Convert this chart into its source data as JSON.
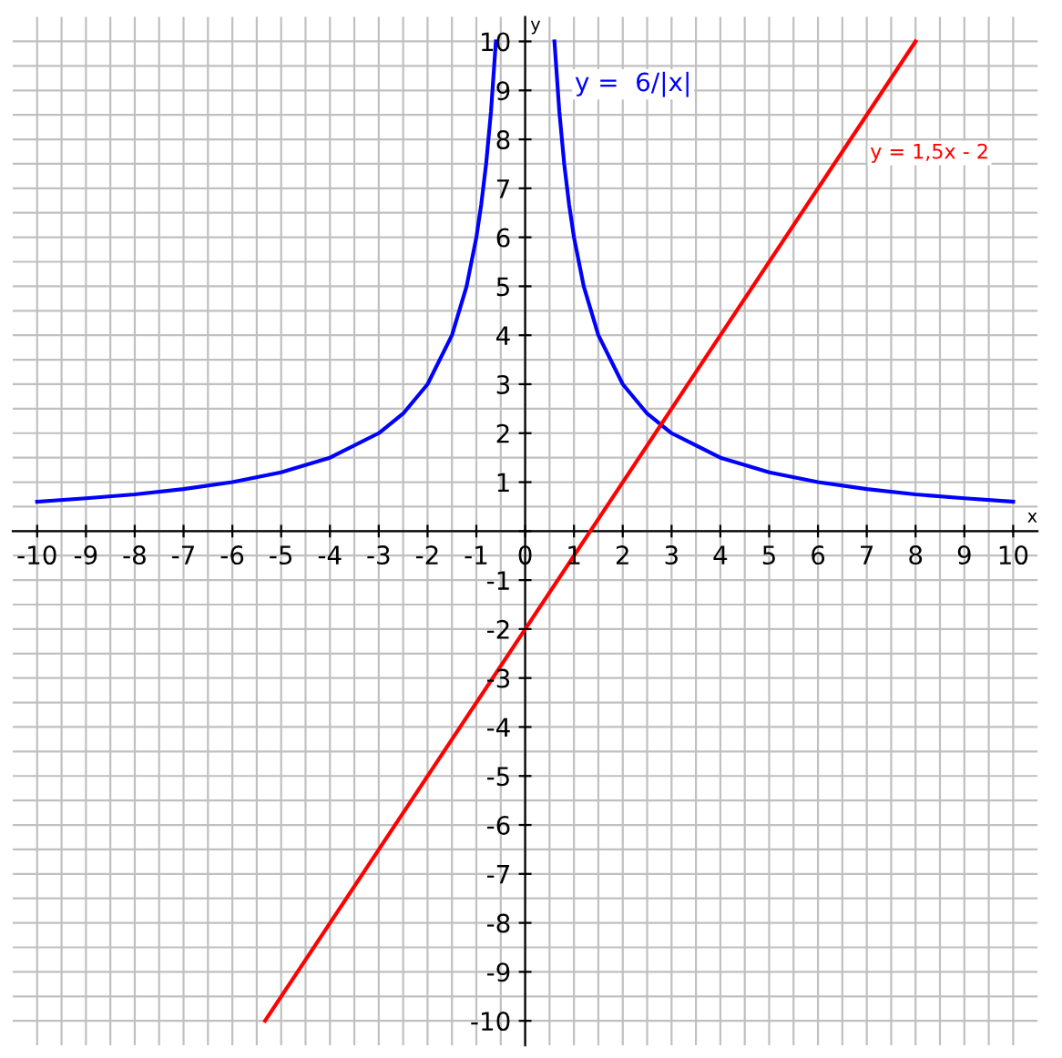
{
  "chart_data": {
    "type": "line",
    "xlabel": "x",
    "ylabel": "y",
    "xlim": [
      -10.5,
      10.5
    ],
    "ylim": [
      -10.5,
      10.5
    ],
    "xticks": [
      {
        "value": -10,
        "label": "-10"
      },
      {
        "value": -9,
        "label": "-9"
      },
      {
        "value": -8,
        "label": "-8"
      },
      {
        "value": -7,
        "label": "-7"
      },
      {
        "value": -6,
        "label": "-6"
      },
      {
        "value": -5,
        "label": "-5"
      },
      {
        "value": -4,
        "label": "-4"
      },
      {
        "value": -3,
        "label": "-3"
      },
      {
        "value": -2,
        "label": "-2"
      },
      {
        "value": -1,
        "label": "-1"
      },
      0,
      1,
      2,
      3,
      4,
      5,
      6,
      7,
      8,
      9,
      10
    ],
    "yticks": [
      {
        "value": -10,
        "label": "-10"
      },
      {
        "value": -9,
        "label": "-9"
      },
      {
        "value": -8,
        "label": "-8"
      },
      {
        "value": -7,
        "label": "-7"
      },
      {
        "value": -6,
        "label": "-6"
      },
      {
        "value": -5,
        "label": "-5"
      },
      {
        "value": -4,
        "label": "-4"
      },
      {
        "value": -3,
        "label": "-3"
      },
      {
        "value": -2,
        "label": "-2"
      },
      {
        "value": -1,
        "label": "-1"
      },
      {
        "value": 0,
        "label": null
      },
      1,
      2,
      3,
      4,
      5,
      6,
      7,
      8,
      9,
      10
    ],
    "grid": true,
    "legend": false,
    "marker": "none",
    "line_style": "solid",
    "series": [
      {
        "name": "y =  6/|x|",
        "color": "#0000ff",
        "x": [
          -10,
          -9,
          -8,
          -7,
          -6,
          -5,
          -4,
          -3,
          -2.5,
          -2,
          -1.5,
          -1.2,
          -1,
          -0.9,
          -0.8,
          -0.7,
          -0.6,
          0,
          0.6,
          0.7,
          0.8,
          0.9,
          1,
          1.2,
          1.5,
          2,
          2.5,
          3,
          4,
          5,
          6,
          7,
          8,
          9,
          10
        ],
        "values": [
          0.6,
          0.67,
          0.75,
          0.86,
          1,
          1.2,
          1.5,
          2,
          2.4,
          3,
          4,
          5,
          6,
          6.67,
          7.5,
          8.57,
          10,
          null,
          10,
          8.57,
          7.5,
          6.67,
          6,
          5,
          4,
          3,
          2.4,
          2,
          1.5,
          1.2,
          1,
          0.86,
          0.75,
          0.67,
          0.6
        ]
      },
      {
        "name": "y = 1,5x - 2",
        "color": "#ff0000",
        "x": [
          -5.33,
          8
        ],
        "values": [
          -10,
          10
        ]
      }
    ]
  }
}
